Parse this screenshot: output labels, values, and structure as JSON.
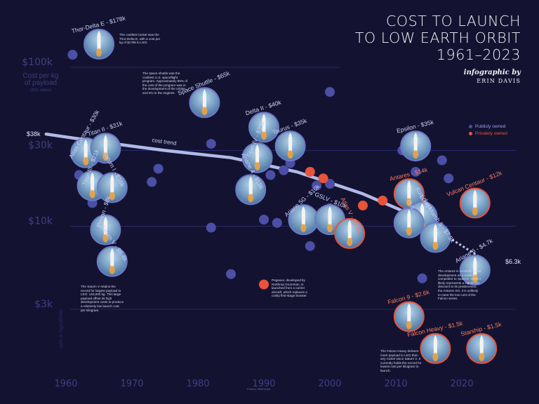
{
  "title": {
    "lines": [
      "COST TO LAUNCH",
      "TO LOW EARTH ORBIT",
      "1961–2023"
    ],
    "byline": "infographic by",
    "author": "ERIN DAVIS"
  },
  "legend": {
    "public": "Publicly owned",
    "private": "Privately owned"
  },
  "colors": {
    "background": "#131331",
    "public": "#4b4fa6",
    "private": "#e8533a",
    "grid": "#2d2d78",
    "trend": "#b9c3f0"
  },
  "axis": {
    "ylabel": "Cost per kg of payload",
    "ylabel_sub": "(2021 dollars)",
    "scale_note": "axis is logarithmic",
    "photo_credit": "Photos: Wikimedia"
  },
  "notes": {
    "thor": "The costliest rocket was the Thor-Delta E, with a cost per kg of $178k to LEO.",
    "shuttle": "The space shuttle was the costliest U.S. spaceflight program. Approximately 95% of the cost of the program was in the development of the orbiter and 5% in the engines.",
    "saturn": "The Saturn V retains the record for largest payload to LEO: 140,000 kg. This large payload offset its high development costs to produce a relatively low launch cost per kilogram.",
    "pegasus": "Pegasus, developed by Northrop Grumman, is launched from a carrier aircraft, which replaces a costly first-stage booster.",
    "antares": "The Antares is currently under development as a possible competitor to SpaceX. While it likely represents a significant discount to its predecessor, the Antares SG, it is unlikely to meet the low cost of the Falcon series.",
    "falcon": "The Falcon Heavy delivers more payload to LEO than any rocket since Saturn V. It currently holds the record for lowest cost per kilogram to launch."
  },
  "chart_data": {
    "type": "scatter",
    "title": "COST TO LAUNCH TO LOW EARTH ORBIT 1961–2023",
    "ylabel": "Cost per kg of payload (2021 dollars)",
    "y_scale": "log",
    "xlim": [
      1958,
      2027
    ],
    "ylim": [
      2000,
      200000
    ],
    "x_ticks": [
      "1960",
      "1970",
      "1980",
      "1990",
      "2000",
      "2010",
      "2020"
    ],
    "y_ticks": [
      {
        "value": 100000,
        "label": "$100k"
      },
      {
        "value": 30000,
        "label": "$30k"
      },
      {
        "value": 10000,
        "label": "$10k"
      },
      {
        "value": 3000,
        "label": "$3k"
      }
    ],
    "trend": {
      "label": "cost trend",
      "start_label": "$38k",
      "end_label": "$6.3k",
      "points": [
        [
          1957,
          38000
        ],
        [
          1965,
          34000
        ],
        [
          1975,
          30000
        ],
        [
          1985,
          27000
        ],
        [
          1995,
          22000
        ],
        [
          2005,
          16000
        ],
        [
          2012,
          12000
        ],
        [
          2018,
          8500
        ],
        [
          2023,
          6300
        ]
      ]
    },
    "points": [
      {
        "x": 1961,
        "y": 120000,
        "owner": "public"
      },
      {
        "x": 1962,
        "y": 21000,
        "owner": "public"
      },
      {
        "x": 1964,
        "y": 14000,
        "owner": "public"
      },
      {
        "x": 1973,
        "y": 19000,
        "owner": "public"
      },
      {
        "x": 1974,
        "y": 23000,
        "owner": "public"
      },
      {
        "x": 1982,
        "y": 9800,
        "owner": "public"
      },
      {
        "x": 1982,
        "y": 33000,
        "owner": "public"
      },
      {
        "x": 1985,
        "y": 5000,
        "owner": "public"
      },
      {
        "x": 1990,
        "y": 11000,
        "owner": "public"
      },
      {
        "x": 1991,
        "y": 21000,
        "owner": "public"
      },
      {
        "x": 1992,
        "y": 10500,
        "owner": "public"
      },
      {
        "x": 1993,
        "y": 22500,
        "owner": "public"
      },
      {
        "x": 1994,
        "y": 25000,
        "owner": "public"
      },
      {
        "x": 1996,
        "y": 9500,
        "owner": "public"
      },
      {
        "x": 1997,
        "y": 7500,
        "owner": "public"
      },
      {
        "x": 1998,
        "y": 18000,
        "owner": "public"
      },
      {
        "x": 1999,
        "y": 10000,
        "owner": "public"
      },
      {
        "x": 2000,
        "y": 70000,
        "owner": "public"
      },
      {
        "x": 2000,
        "y": 18500,
        "owner": "public"
      },
      {
        "x": 2000,
        "y": 13000,
        "owner": "public"
      },
      {
        "x": 2011,
        "y": 30000,
        "owner": "public"
      },
      {
        "x": 2013,
        "y": 22000,
        "owner": "public"
      },
      {
        "x": 2014,
        "y": 4700,
        "owner": "public"
      },
      {
        "x": 2017,
        "y": 26000,
        "owner": "public"
      },
      {
        "x": 2018,
        "y": 20000,
        "owner": "public"
      },
      {
        "x": 1990,
        "y": 4300,
        "owner": "private"
      },
      {
        "x": 1997,
        "y": 22000,
        "owner": "private"
      },
      {
        "x": 1999,
        "y": 20000,
        "owner": "private"
      },
      {
        "x": 2005,
        "y": 13500,
        "owner": "private"
      },
      {
        "x": 2008,
        "y": 14500,
        "owner": "private"
      }
    ],
    "rockets": [
      {
        "name": "Thor-Delta E - $178k",
        "x": 1965,
        "y": 140000,
        "owner": "public",
        "label_rot": -14
      },
      {
        "name": "Space Shuttle - $65k",
        "x": 1981,
        "y": 60000,
        "owner": "public",
        "label_rot": -22
      },
      {
        "name": "Atlas-Centaur - $30k",
        "x": 1963,
        "y": 29000,
        "owner": "public",
        "label_rot": -60
      },
      {
        "name": "Titan II - $31k",
        "x": 1966,
        "y": 31000,
        "owner": "public",
        "label_rot": -18
      },
      {
        "name": "Titan III - $21k",
        "x": 1964,
        "y": 18000,
        "owner": "public",
        "label_rot": -70
      },
      {
        "name": "Saturn I - $16k",
        "x": 1967,
        "y": 17500,
        "owner": "public",
        "label_rot": 62
      },
      {
        "name": "Proton - $8k",
        "x": 1966,
        "y": 9500,
        "owner": "public",
        "label_rot": -72
      },
      {
        "name": "Saturn V - $5.4k",
        "x": 1967,
        "y": 6000,
        "owner": "public",
        "label_rot": 55
      },
      {
        "name": "Delta II - $40k",
        "x": 1990,
        "y": 42000,
        "owner": "public",
        "label_rot": -18
      },
      {
        "name": "Taurus - $35k",
        "x": 1994,
        "y": 32000,
        "owner": "public",
        "label_rot": -20
      },
      {
        "name": "Titan IV - $31k",
        "x": 1989,
        "y": 27000,
        "owner": "public",
        "label_rot": -68
      },
      {
        "name": "Ariane 4 - $18k",
        "x": 1988,
        "y": 17000,
        "owner": "public",
        "label_rot": 62
      },
      {
        "name": "Ariane 5G - $10k",
        "x": 1996,
        "y": 11000,
        "owner": "public",
        "label_rot": -42
      },
      {
        "name": "GSLV - $10k",
        "x": 2000,
        "y": 11000,
        "owner": "public",
        "label_rot": 22
      },
      {
        "name": "Atlas V - $8.1k",
        "x": 2003,
        "y": 9000,
        "owner": "private",
        "label_rot": 62
      },
      {
        "name": "Epsilon - $35k",
        "x": 2013,
        "y": 32000,
        "owner": "public",
        "label_rot": -14
      },
      {
        "name": "Antares - $14k",
        "x": 2012,
        "y": 16000,
        "owner": "private",
        "label_rot": -14
      },
      {
        "name": "Kuaizhou",
        "x": 2014,
        "y": 11500,
        "owner": "public",
        "label_rot": 55
      },
      {
        "name": "H-II",
        "x": 2012,
        "y": 10500,
        "owner": "public",
        "label_rot": 65
      },
      {
        "name": "Long March 5 - $7.9k",
        "x": 2016,
        "y": 8500,
        "owner": "public",
        "label_rot": 55
      },
      {
        "name": "Vulcan Centaur - $12k",
        "x": 2022,
        "y": 14000,
        "owner": "private",
        "label_rot": -22
      },
      {
        "name": "Ariane 6 - $4.7k",
        "x": 2022,
        "y": 5300,
        "owner": "public",
        "label_rot": -30
      },
      {
        "name": "Falcon 9 - $2.6k",
        "x": 2012,
        "y": 2700,
        "owner": "private",
        "label_rot": -14
      },
      {
        "name": "Falcon Heavy - $1.5k",
        "x": 2016,
        "y": 1700,
        "owner": "private",
        "label_rot": -12
      },
      {
        "name": "Starship - $1.5k",
        "x": 2023,
        "y": 1700,
        "owner": "private",
        "label_rot": -14
      }
    ]
  }
}
